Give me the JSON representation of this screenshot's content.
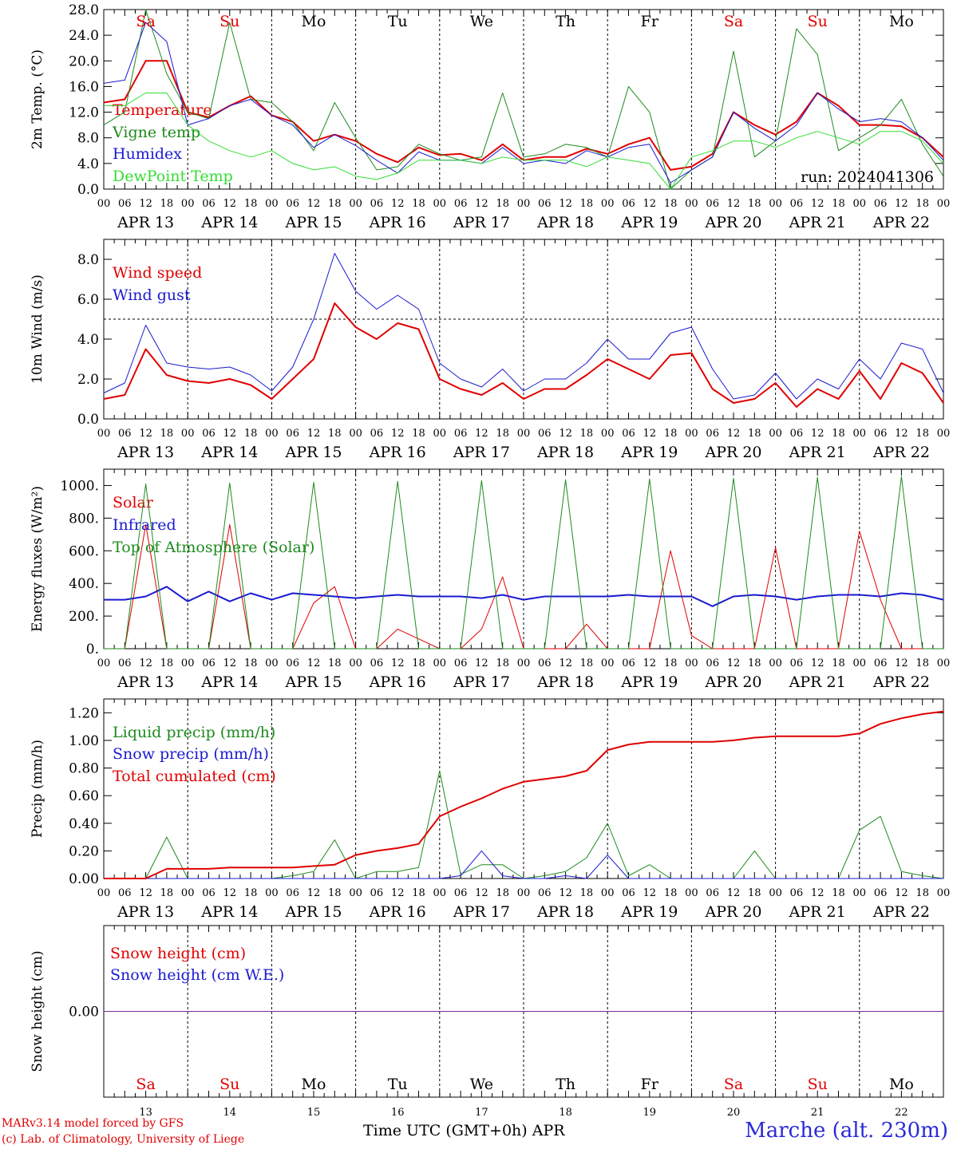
{
  "footer": {
    "credit_line1": "MARv3.14 model forced by GFS",
    "credit_line2": "(c) Lab. of Climatology, University of Liege",
    "xaxis_label": "Time UTC (GMT+0h) APR",
    "station": "Marche (alt. 230m)"
  },
  "colors": {
    "red": "#e00000",
    "green": "#1e8a1e",
    "blue": "#1a1ad0",
    "lightgreen": "#33dd33",
    "purple": "#7a2a9a",
    "black": "#000000"
  },
  "days": {
    "weekday": [
      "Sa",
      "Su",
      "Mo",
      "Tu",
      "We",
      "Th",
      "Fr",
      "Sa",
      "Su",
      "Mo"
    ],
    "weekend_flags": [
      true,
      true,
      false,
      false,
      false,
      false,
      false,
      true,
      true,
      false
    ],
    "date_labels": [
      "APR 13",
      "APR 14",
      "APR 15",
      "APR 16",
      "APR 17",
      "APR 18",
      "APR 19",
      "APR 20",
      "APR 21",
      "APR 22"
    ],
    "day_numbers": [
      "13",
      "14",
      "15",
      "16",
      "17",
      "18",
      "19",
      "20",
      "21",
      "22"
    ]
  },
  "chart_data": [
    {
      "type": "line",
      "ylabel": "2m Temp. (°C)",
      "yticks": [
        "0.0",
        "4.0",
        "8.0",
        "12.0",
        "16.0",
        "20.0",
        "24.0",
        "28.0"
      ],
      "ylim": [
        0,
        28
      ],
      "annotation": "run: 2024041306",
      "x_hours": [
        0,
        6,
        12,
        18,
        24,
        30,
        36,
        42,
        48,
        54,
        60,
        66,
        72,
        78,
        84,
        90,
        96,
        102,
        108,
        114,
        120,
        126,
        132,
        138,
        144,
        150,
        156,
        162,
        168,
        174,
        180,
        186,
        192,
        198,
        204,
        210,
        216,
        222,
        228,
        234,
        240
      ],
      "series": [
        {
          "name": "Temperature",
          "color": "red",
          "width": 2,
          "values": [
            13.5,
            14,
            20,
            20,
            12,
            11.2,
            13,
            14.5,
            11.5,
            10.5,
            7.5,
            8.5,
            7.5,
            5.5,
            4.2,
            6.5,
            5.3,
            5.5,
            4.5,
            7,
            4.5,
            5,
            5,
            6.3,
            5.5,
            7,
            8,
            3,
            3.5,
            5.5,
            12,
            10,
            8.5,
            10.5,
            15,
            13,
            10,
            10,
            9.8,
            8,
            5
          ]
        },
        {
          "name": "Vigne temp",
          "color": "green",
          "width": 1,
          "values": [
            10,
            12,
            28,
            18,
            12,
            11,
            26,
            14,
            13.5,
            10.5,
            6,
            13.5,
            8,
            3,
            3.5,
            7,
            5.5,
            4.5,
            5,
            15,
            5,
            5.5,
            7,
            6.5,
            5,
            16,
            12,
            0,
            3,
            5,
            21.5,
            5,
            7.5,
            25,
            21,
            6,
            8,
            10,
            14,
            7,
            2
          ]
        },
        {
          "name": "Humidex",
          "color": "blue",
          "width": 1,
          "values": [
            16.5,
            17,
            26,
            23,
            10,
            11,
            13,
            14,
            11.5,
            10,
            6.5,
            8.5,
            6.8,
            4.5,
            2.5,
            5.8,
            4.5,
            4.5,
            4,
            6.5,
            4,
            4.5,
            4,
            6,
            5,
            6.5,
            7,
            1,
            3,
            5,
            12,
            9.5,
            7.5,
            10,
            15,
            12.5,
            10.5,
            11,
            10.5,
            8,
            4.5
          ]
        },
        {
          "name": "DewPoint Temp",
          "color": "lightgreen",
          "width": 1,
          "values": [
            13,
            13,
            15,
            15,
            10,
            7.5,
            6,
            5,
            6,
            4,
            3,
            3.5,
            2,
            1.5,
            2.5,
            4.5,
            4.5,
            4.5,
            4,
            5,
            4.5,
            4.5,
            4.5,
            3.5,
            5,
            4.5,
            4,
            0,
            5,
            6,
            7.5,
            7.5,
            6.5,
            8,
            9,
            8,
            7,
            9,
            9,
            7.5,
            4
          ]
        }
      ]
    },
    {
      "type": "line",
      "ylabel": "10m Wind (m/s)",
      "yticks": [
        "0.0",
        "2.0",
        "4.0",
        "6.0",
        "8.0"
      ],
      "ylim": [
        0,
        9
      ],
      "reference_line": 5.0,
      "x_hours": [
        0,
        6,
        12,
        18,
        24,
        30,
        36,
        42,
        48,
        54,
        60,
        66,
        72,
        78,
        84,
        90,
        96,
        102,
        108,
        114,
        120,
        126,
        132,
        138,
        144,
        150,
        156,
        162,
        168,
        174,
        180,
        186,
        192,
        198,
        204,
        210,
        216,
        222,
        228,
        234,
        240
      ],
      "series": [
        {
          "name": "Wind speed",
          "color": "red",
          "width": 2,
          "values": [
            1.0,
            1.2,
            3.5,
            2.2,
            1.9,
            1.8,
            2.0,
            1.7,
            1.0,
            2.0,
            3.0,
            5.8,
            4.6,
            4.0,
            4.8,
            4.5,
            2.0,
            1.5,
            1.2,
            1.8,
            1.0,
            1.5,
            1.5,
            2.2,
            3.0,
            2.5,
            2.0,
            3.2,
            3.3,
            1.5,
            0.8,
            1.0,
            1.8,
            0.6,
            1.5,
            1.0,
            2.4,
            1.0,
            2.8,
            2.3,
            0.8
          ]
        },
        {
          "name": "Wind gust",
          "color": "blue",
          "width": 1,
          "values": [
            1.3,
            1.8,
            4.7,
            2.8,
            2.6,
            2.5,
            2.6,
            2.2,
            1.4,
            2.6,
            5.0,
            8.3,
            6.4,
            5.5,
            6.2,
            5.5,
            2.8,
            2.0,
            1.6,
            2.5,
            1.4,
            2.0,
            2.0,
            2.8,
            4.0,
            3.0,
            3.0,
            4.3,
            4.6,
            2.5,
            1.0,
            1.2,
            2.3,
            1.0,
            2.0,
            1.5,
            3.0,
            2.0,
            3.8,
            3.5,
            1.3
          ]
        }
      ]
    },
    {
      "type": "line",
      "ylabel": "Energy fluxes (W/m²)",
      "yticks": [
        "0.",
        "200.",
        "400.",
        "600.",
        "800.",
        "1000."
      ],
      "ylim": [
        0,
        1100
      ],
      "x_hours": [
        0,
        6,
        12,
        18,
        24,
        30,
        36,
        42,
        48,
        54,
        60,
        66,
        72,
        78,
        84,
        90,
        96,
        102,
        108,
        114,
        120,
        126,
        132,
        138,
        144,
        150,
        156,
        162,
        168,
        174,
        180,
        186,
        192,
        198,
        204,
        210,
        216,
        222,
        228,
        234,
        240
      ],
      "series": [
        {
          "name": "Solar",
          "color": "red",
          "width": 1,
          "values": [
            0,
            0,
            760,
            0,
            0,
            0,
            760,
            0,
            0,
            0,
            280,
            380,
            0,
            0,
            120,
            60,
            0,
            0,
            120,
            440,
            0,
            0,
            0,
            150,
            0,
            0,
            0,
            600,
            80,
            0,
            0,
            0,
            620,
            0,
            0,
            0,
            720,
            300,
            0,
            0,
            0
          ]
        },
        {
          "name": "Infrared",
          "color": "blue",
          "width": 2,
          "values": [
            300,
            300,
            320,
            380,
            290,
            350,
            290,
            340,
            300,
            340,
            330,
            320,
            310,
            320,
            330,
            320,
            320,
            320,
            310,
            330,
            300,
            320,
            320,
            320,
            320,
            330,
            320,
            320,
            320,
            260,
            320,
            330,
            320,
            300,
            320,
            330,
            330,
            320,
            340,
            330,
            300
          ]
        },
        {
          "name": "Top of Atmosphere (Solar)",
          "color": "green",
          "width": 1,
          "values": [
            0,
            0,
            1010,
            0,
            0,
            0,
            1015,
            0,
            0,
            0,
            1020,
            0,
            0,
            0,
            1025,
            0,
            0,
            0,
            1030,
            0,
            0,
            0,
            1035,
            0,
            0,
            0,
            1040,
            0,
            0,
            0,
            1045,
            0,
            0,
            0,
            1050,
            0,
            0,
            0,
            1055,
            0,
            0
          ]
        }
      ]
    },
    {
      "type": "line",
      "ylabel": "Precip (mm/h)",
      "yticks": [
        "0.00",
        "0.20",
        "0.40",
        "0.60",
        "0.80",
        "1.00",
        "1.20"
      ],
      "ylim": [
        0,
        1.3
      ],
      "x_hours": [
        0,
        6,
        12,
        18,
        24,
        30,
        36,
        42,
        48,
        54,
        60,
        66,
        72,
        78,
        84,
        90,
        96,
        102,
        108,
        114,
        120,
        126,
        132,
        138,
        144,
        150,
        156,
        162,
        168,
        174,
        180,
        186,
        192,
        198,
        204,
        210,
        216,
        222,
        228,
        234,
        240
      ],
      "series": [
        {
          "name": "Liquid precip (mm/h)",
          "color": "green",
          "width": 1,
          "values": [
            0,
            0,
            0,
            0.3,
            0,
            0,
            0,
            0,
            0,
            0.02,
            0.05,
            0.28,
            0,
            0.05,
            0.05,
            0.08,
            0.78,
            0.03,
            0.1,
            0.1,
            0,
            0.02,
            0.05,
            0.15,
            0.4,
            0.02,
            0.1,
            0,
            0,
            0,
            0,
            0.2,
            0,
            0,
            0,
            0,
            0.35,
            0.45,
            0.05,
            0.02,
            0
          ]
        },
        {
          "name": "Snow precip (mm/h)",
          "color": "blue",
          "width": 1,
          "values": [
            0,
            0,
            0,
            0,
            0,
            0,
            0,
            0,
            0,
            0,
            0,
            0,
            0,
            0,
            0,
            0,
            0,
            0.02,
            0.2,
            0.02,
            0,
            0,
            0.02,
            0,
            0.17,
            0,
            0,
            0,
            0,
            0,
            0,
            0,
            0,
            0,
            0,
            0,
            0,
            0,
            0,
            0,
            0
          ]
        },
        {
          "name": "Total cumulated (cm)",
          "color": "red",
          "width": 2,
          "values": [
            0,
            0,
            0,
            0.07,
            0.07,
            0.07,
            0.08,
            0.08,
            0.08,
            0.08,
            0.09,
            0.1,
            0.17,
            0.2,
            0.22,
            0.25,
            0.45,
            0.52,
            0.58,
            0.65,
            0.7,
            0.72,
            0.74,
            0.78,
            0.93,
            0.97,
            0.99,
            0.99,
            0.99,
            0.99,
            1.0,
            1.02,
            1.03,
            1.03,
            1.03,
            1.03,
            1.05,
            1.12,
            1.16,
            1.19,
            1.21
          ]
        }
      ]
    },
    {
      "type": "line",
      "ylabel": "Snow height (cm)",
      "yticks": [
        "0.00"
      ],
      "ylim": [
        -1,
        1
      ],
      "x_hours": [
        0,
        240
      ],
      "series": [
        {
          "name": "Snow height (cm)",
          "color": "red",
          "width": 1,
          "values": [
            0,
            0
          ]
        },
        {
          "name": "Snow height (cm W.E.)",
          "color": "blue",
          "width": 1,
          "values": [
            0,
            0
          ]
        }
      ]
    }
  ]
}
